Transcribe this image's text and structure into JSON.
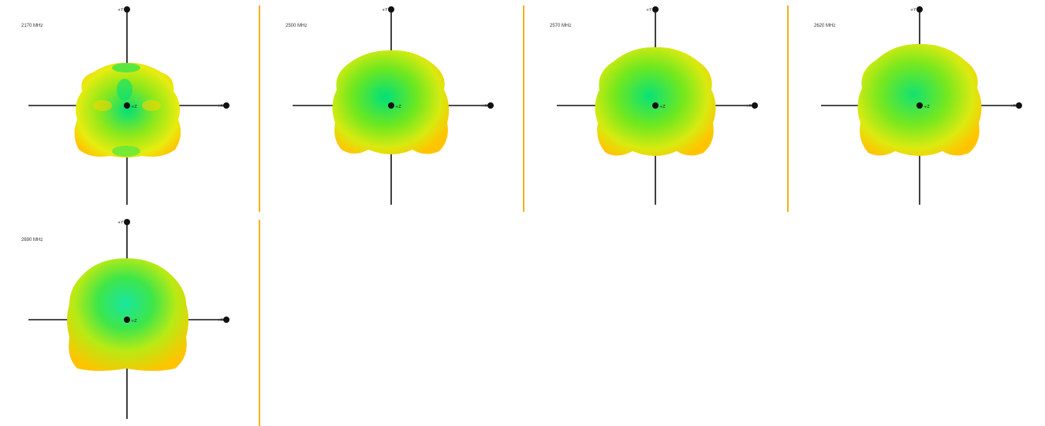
{
  "axes": {
    "plus_y": "+Y",
    "plus_x": "+X",
    "plus_z": "+Z"
  },
  "patterns": [
    {
      "frequency": "2170 MHz",
      "shape": "lobed"
    },
    {
      "frequency": "2500 MHz",
      "shape": "pentagon"
    },
    {
      "frequency": "2570 MHz",
      "shape": "pentagon"
    },
    {
      "frequency": "2620 MHz",
      "shape": "pentagon"
    },
    {
      "frequency": "2690 MHz",
      "shape": "rounded"
    }
  ],
  "colors": {
    "separator": "#f2b21c",
    "high_gain": "#ffd400",
    "mid_gain": "#8ee81a",
    "low_gain": "#00e07a",
    "axis": "#111111"
  }
}
